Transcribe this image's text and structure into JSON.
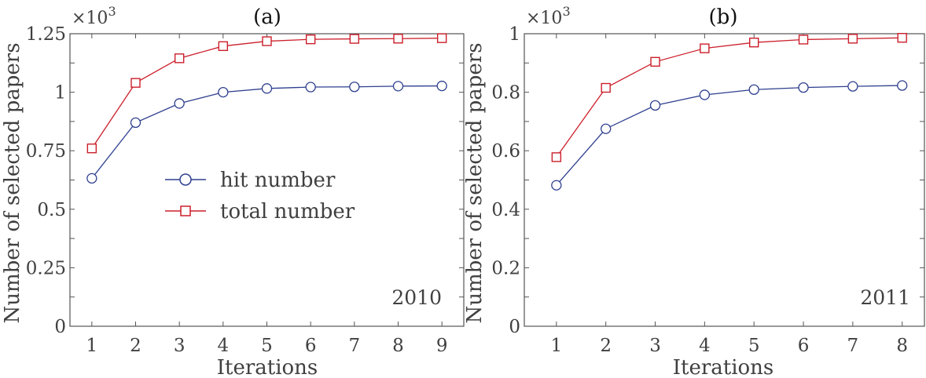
{
  "chart_data": [
    {
      "type": "line",
      "title": "(a)",
      "annotation": "2010",
      "xlabel": "Iterations",
      "ylabel": "Number of selected papers",
      "y_multiplier": "×10^3",
      "x": [
        1,
        2,
        3,
        4,
        5,
        6,
        7,
        8,
        9
      ],
      "xlim": [
        0.5,
        9.5
      ],
      "ylim": [
        0,
        1.25
      ],
      "yticks": [
        0,
        0.25,
        0.5,
        0.75,
        1,
        1.25
      ],
      "ytick_labels": [
        "0",
        "0.25",
        "0.5",
        "0.75",
        "1",
        "1.25"
      ],
      "xtick_labels": [
        "1",
        "2",
        "3",
        "4",
        "5",
        "6",
        "7",
        "8",
        "9"
      ],
      "series": [
        {
          "name": "hit number",
          "color": "#2e3f8f",
          "marker": "circle",
          "values": [
            0.632,
            0.87,
            0.952,
            1.0,
            1.016,
            1.022,
            1.023,
            1.026,
            1.027
          ]
        },
        {
          "name": "total number",
          "color": "#cc1f2b",
          "marker": "square",
          "values": [
            0.76,
            1.04,
            1.145,
            1.197,
            1.218,
            1.226,
            1.228,
            1.229,
            1.231
          ]
        }
      ],
      "legend_position": "center-left",
      "grid": false
    },
    {
      "type": "line",
      "title": "(b)",
      "annotation": "2011",
      "xlabel": "Iterations",
      "ylabel": "Number of selected papers",
      "y_multiplier": "×10^3",
      "x": [
        1,
        2,
        3,
        4,
        5,
        6,
        7,
        8
      ],
      "xlim": [
        0.35,
        8.45
      ],
      "ylim": [
        0,
        1
      ],
      "yticks": [
        0,
        0.2,
        0.4,
        0.6,
        0.8,
        1
      ],
      "ytick_labels": [
        "0",
        "0.2",
        "0.4",
        "0.6",
        "0.8",
        "1"
      ],
      "xtick_labels": [
        "1",
        "2",
        "3",
        "4",
        "5",
        "6",
        "7",
        "8"
      ],
      "series": [
        {
          "name": "hit number",
          "color": "#2e3f8f",
          "marker": "circle",
          "values": [
            0.482,
            0.675,
            0.755,
            0.791,
            0.809,
            0.816,
            0.82,
            0.823
          ]
        },
        {
          "name": "total number",
          "color": "#cc1f2b",
          "marker": "square",
          "values": [
            0.578,
            0.815,
            0.904,
            0.95,
            0.97,
            0.98,
            0.983,
            0.986
          ]
        }
      ],
      "grid": false
    }
  ],
  "panels": [
    {
      "title": "(a)",
      "annotation": "2010",
      "xlabel": "Iterations",
      "ylabel": "Number of selected papers",
      "mult_base": "×10",
      "mult_exp": "3"
    },
    {
      "title": "(b)",
      "annotation": "2011",
      "xlabel": "Iterations",
      "ylabel": "Number of selected papers",
      "mult_base": "×10",
      "mult_exp": "3"
    }
  ],
  "legend": {
    "items": [
      {
        "label": "hit number",
        "color": "#2e3f8f",
        "marker": "circle"
      },
      {
        "label": "total number",
        "color": "#cc1f2b",
        "marker": "square"
      }
    ]
  }
}
